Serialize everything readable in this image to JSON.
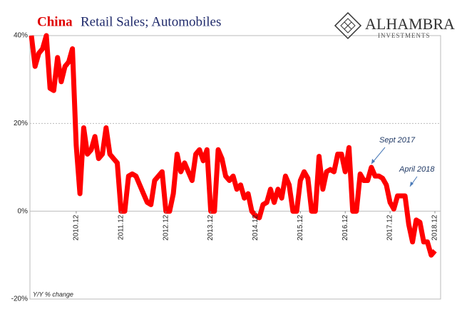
{
  "logo": {
    "name": "ALHAMBRA",
    "tagline": "INVESTMENTS"
  },
  "chart_data": {
    "type": "line",
    "title_highlight": "China",
    "title": "Retail Sales; Automobiles",
    "y_label": "Y/Y % change",
    "annotations": [
      "Sept 2017",
      "April 2018"
    ],
    "categories": [
      null,
      null,
      null,
      null,
      null,
      null,
      null,
      null,
      null,
      null,
      null,
      null,
      "2010.12",
      null,
      null,
      null,
      null,
      null,
      null,
      null,
      null,
      null,
      null,
      null,
      "2011.12",
      null,
      null,
      null,
      null,
      null,
      null,
      null,
      null,
      null,
      null,
      null,
      "2012.12",
      null,
      null,
      null,
      null,
      null,
      null,
      null,
      null,
      null,
      null,
      null,
      "2013.12",
      null,
      null,
      null,
      null,
      null,
      null,
      null,
      null,
      null,
      null,
      null,
      "2014.12",
      null,
      null,
      null,
      null,
      null,
      null,
      null,
      null,
      null,
      null,
      null,
      "2015.12",
      null,
      null,
      null,
      null,
      null,
      null,
      null,
      null,
      null,
      null,
      null,
      "2016.12",
      null,
      null,
      null,
      null,
      null,
      null,
      null,
      null,
      null,
      null,
      null,
      "2017.12",
      null,
      null,
      null,
      null,
      null,
      null,
      null,
      null,
      null,
      null,
      null,
      "2018.12"
    ],
    "series": [
      {
        "name": "China Retail Sales; Automobiles",
        "color": "#ff0000",
        "values": [
          40,
          33,
          36,
          37,
          40,
          28,
          27.5,
          35,
          29.5,
          33,
          34,
          37,
          15,
          4,
          19,
          13,
          14,
          17,
          12,
          13,
          19,
          13,
          12,
          11,
          0,
          0,
          8,
          8.5,
          8,
          6,
          4,
          2,
          1.5,
          7,
          8,
          9,
          0,
          0,
          4,
          13,
          9,
          11,
          9,
          7,
          13,
          14,
          11.5,
          14,
          0,
          0,
          14,
          12,
          8,
          7,
          8,
          5,
          6,
          3,
          4,
          0,
          -1,
          -1.5,
          1.5,
          2,
          5,
          2,
          5,
          3,
          8,
          6,
          0,
          0,
          7,
          9,
          7.5,
          0,
          0,
          12.5,
          5,
          9,
          9.5,
          9,
          13,
          13,
          9,
          14.5,
          0,
          0,
          8.5,
          7,
          7,
          10,
          8,
          8,
          7.5,
          6,
          2,
          0.5,
          3.5,
          3.5,
          3.5,
          -3,
          -7,
          -2,
          -2.5,
          -7,
          -7,
          -10,
          -9
        ]
      }
    ],
    "ylim": [
      -20,
      40
    ],
    "yticks": [
      {
        "value": -20,
        "label": "-20%"
      },
      {
        "value": 0,
        "label": "0%"
      },
      {
        "value": 20,
        "label": "20%"
      },
      {
        "value": 40,
        "label": "40%"
      }
    ],
    "grid": true
  }
}
